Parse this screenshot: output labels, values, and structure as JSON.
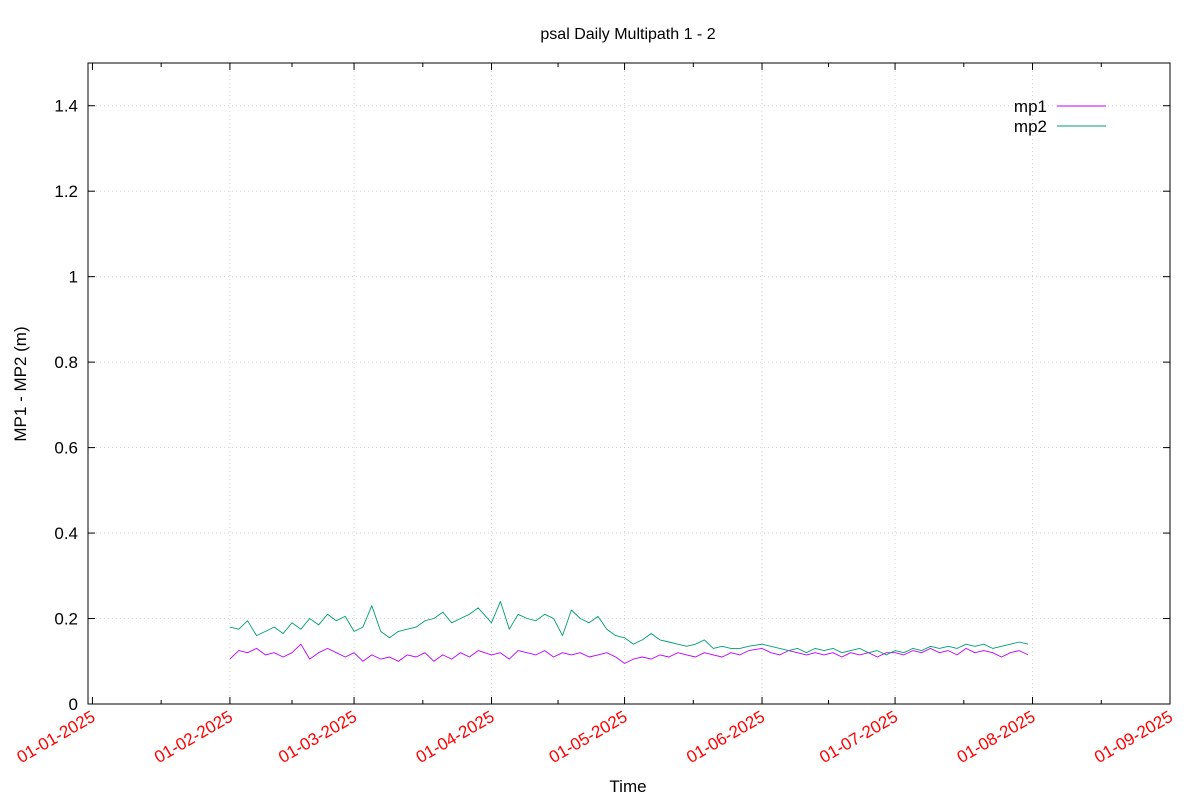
{
  "chart_data": {
    "type": "line",
    "title": "psal Daily Multipath 1 - 2",
    "xlabel": "Time",
    "ylabel": "MP1 - MP2 (m)",
    "xlim": [
      "2024-12-31",
      "2025-09-01"
    ],
    "ylim": [
      0,
      1.5
    ],
    "grid": true,
    "legend_position": "top-right",
    "x_tick_labels": [
      "01-01-2025",
      "01-02-2025",
      "01-03-2025",
      "01-04-2025",
      "01-05-2025",
      "01-06-2025",
      "01-07-2025",
      "01-08-2025",
      "01-09-2025"
    ],
    "x_tick_dates": [
      "2025-01-01",
      "2025-02-01",
      "2025-03-01",
      "2025-04-01",
      "2025-05-01",
      "2025-06-01",
      "2025-07-01",
      "2025-08-01",
      "2025-09-01"
    ],
    "y_ticks": [
      "0",
      "0.2",
      "0.4",
      "0.6",
      "0.8",
      "1",
      "1.2",
      "1.4"
    ],
    "x_tick_color": "#ff0000",
    "series": [
      {
        "name": "mp1",
        "color": "#c000ff",
        "points": [
          [
            "2025-02-01",
            0.105
          ],
          [
            "2025-02-03",
            0.125
          ],
          [
            "2025-02-05",
            0.12
          ],
          [
            "2025-02-07",
            0.13
          ],
          [
            "2025-02-09",
            0.115
          ],
          [
            "2025-02-11",
            0.12
          ],
          [
            "2025-02-13",
            0.11
          ],
          [
            "2025-02-15",
            0.12
          ],
          [
            "2025-02-17",
            0.14
          ],
          [
            "2025-02-19",
            0.105
          ],
          [
            "2025-02-21",
            0.12
          ],
          [
            "2025-02-23",
            0.13
          ],
          [
            "2025-02-25",
            0.12
          ],
          [
            "2025-02-27",
            0.11
          ],
          [
            "2025-03-01",
            0.12
          ],
          [
            "2025-03-03",
            0.1
          ],
          [
            "2025-03-05",
            0.115
          ],
          [
            "2025-03-07",
            0.105
          ],
          [
            "2025-03-09",
            0.11
          ],
          [
            "2025-03-11",
            0.1
          ],
          [
            "2025-03-13",
            0.115
          ],
          [
            "2025-03-15",
            0.11
          ],
          [
            "2025-03-17",
            0.12
          ],
          [
            "2025-03-19",
            0.1
          ],
          [
            "2025-03-21",
            0.115
          ],
          [
            "2025-03-23",
            0.105
          ],
          [
            "2025-03-25",
            0.12
          ],
          [
            "2025-03-27",
            0.11
          ],
          [
            "2025-03-29",
            0.125
          ],
          [
            "2025-04-01",
            0.115
          ],
          [
            "2025-04-03",
            0.12
          ],
          [
            "2025-04-05",
            0.105
          ],
          [
            "2025-04-07",
            0.125
          ],
          [
            "2025-04-09",
            0.12
          ],
          [
            "2025-04-11",
            0.115
          ],
          [
            "2025-04-13",
            0.125
          ],
          [
            "2025-04-15",
            0.11
          ],
          [
            "2025-04-17",
            0.12
          ],
          [
            "2025-04-19",
            0.115
          ],
          [
            "2025-04-21",
            0.12
          ],
          [
            "2025-04-23",
            0.11
          ],
          [
            "2025-04-25",
            0.115
          ],
          [
            "2025-04-27",
            0.12
          ],
          [
            "2025-04-29",
            0.11
          ],
          [
            "2025-05-01",
            0.095
          ],
          [
            "2025-05-03",
            0.105
          ],
          [
            "2025-05-05",
            0.11
          ],
          [
            "2025-05-07",
            0.105
          ],
          [
            "2025-05-09",
            0.115
          ],
          [
            "2025-05-11",
            0.11
          ],
          [
            "2025-05-13",
            0.12
          ],
          [
            "2025-05-15",
            0.115
          ],
          [
            "2025-05-17",
            0.11
          ],
          [
            "2025-05-19",
            0.12
          ],
          [
            "2025-05-21",
            0.115
          ],
          [
            "2025-05-23",
            0.11
          ],
          [
            "2025-05-25",
            0.12
          ],
          [
            "2025-05-27",
            0.115
          ],
          [
            "2025-05-29",
            0.125
          ],
          [
            "2025-06-01",
            0.13
          ],
          [
            "2025-06-03",
            0.12
          ],
          [
            "2025-06-05",
            0.115
          ],
          [
            "2025-06-07",
            0.125
          ],
          [
            "2025-06-09",
            0.12
          ],
          [
            "2025-06-11",
            0.115
          ],
          [
            "2025-06-13",
            0.12
          ],
          [
            "2025-06-15",
            0.115
          ],
          [
            "2025-06-17",
            0.12
          ],
          [
            "2025-06-19",
            0.11
          ],
          [
            "2025-06-21",
            0.12
          ],
          [
            "2025-06-23",
            0.115
          ],
          [
            "2025-06-25",
            0.12
          ],
          [
            "2025-06-27",
            0.11
          ],
          [
            "2025-06-29",
            0.12
          ],
          [
            "2025-07-01",
            0.12
          ],
          [
            "2025-07-03",
            0.115
          ],
          [
            "2025-07-05",
            0.125
          ],
          [
            "2025-07-07",
            0.12
          ],
          [
            "2025-07-09",
            0.13
          ],
          [
            "2025-07-11",
            0.12
          ],
          [
            "2025-07-13",
            0.125
          ],
          [
            "2025-07-15",
            0.115
          ],
          [
            "2025-07-17",
            0.13
          ],
          [
            "2025-07-19",
            0.12
          ],
          [
            "2025-07-21",
            0.125
          ],
          [
            "2025-07-23",
            0.12
          ],
          [
            "2025-07-25",
            0.11
          ],
          [
            "2025-07-27",
            0.12
          ],
          [
            "2025-07-29",
            0.125
          ],
          [
            "2025-07-31",
            0.115
          ]
        ]
      },
      {
        "name": "mp2",
        "color": "#009e73",
        "points": [
          [
            "2025-02-01",
            0.18
          ],
          [
            "2025-02-03",
            0.175
          ],
          [
            "2025-02-05",
            0.195
          ],
          [
            "2025-02-07",
            0.16
          ],
          [
            "2025-02-09",
            0.17
          ],
          [
            "2025-02-11",
            0.18
          ],
          [
            "2025-02-13",
            0.165
          ],
          [
            "2025-02-15",
            0.19
          ],
          [
            "2025-02-17",
            0.175
          ],
          [
            "2025-02-19",
            0.2
          ],
          [
            "2025-02-21",
            0.185
          ],
          [
            "2025-02-23",
            0.21
          ],
          [
            "2025-02-25",
            0.195
          ],
          [
            "2025-02-27",
            0.205
          ],
          [
            "2025-03-01",
            0.17
          ],
          [
            "2025-03-03",
            0.18
          ],
          [
            "2025-03-05",
            0.23
          ],
          [
            "2025-03-07",
            0.17
          ],
          [
            "2025-03-09",
            0.155
          ],
          [
            "2025-03-11",
            0.17
          ],
          [
            "2025-03-13",
            0.175
          ],
          [
            "2025-03-15",
            0.18
          ],
          [
            "2025-03-17",
            0.195
          ],
          [
            "2025-03-19",
            0.2
          ],
          [
            "2025-03-21",
            0.215
          ],
          [
            "2025-03-23",
            0.19
          ],
          [
            "2025-03-25",
            0.2
          ],
          [
            "2025-03-27",
            0.21
          ],
          [
            "2025-03-29",
            0.225
          ],
          [
            "2025-04-01",
            0.19
          ],
          [
            "2025-04-03",
            0.24
          ],
          [
            "2025-04-05",
            0.175
          ],
          [
            "2025-04-07",
            0.21
          ],
          [
            "2025-04-09",
            0.2
          ],
          [
            "2025-04-11",
            0.195
          ],
          [
            "2025-04-13",
            0.21
          ],
          [
            "2025-04-15",
            0.2
          ],
          [
            "2025-04-17",
            0.16
          ],
          [
            "2025-04-19",
            0.22
          ],
          [
            "2025-04-21",
            0.2
          ],
          [
            "2025-04-23",
            0.19
          ],
          [
            "2025-04-25",
            0.205
          ],
          [
            "2025-04-27",
            0.175
          ],
          [
            "2025-04-29",
            0.16
          ],
          [
            "2025-05-01",
            0.155
          ],
          [
            "2025-05-03",
            0.14
          ],
          [
            "2025-05-05",
            0.15
          ],
          [
            "2025-05-07",
            0.165
          ],
          [
            "2025-05-09",
            0.15
          ],
          [
            "2025-05-11",
            0.145
          ],
          [
            "2025-05-13",
            0.14
          ],
          [
            "2025-05-15",
            0.135
          ],
          [
            "2025-05-17",
            0.14
          ],
          [
            "2025-05-19",
            0.15
          ],
          [
            "2025-05-21",
            0.13
          ],
          [
            "2025-05-23",
            0.135
          ],
          [
            "2025-05-25",
            0.13
          ],
          [
            "2025-05-27",
            0.13
          ],
          [
            "2025-05-29",
            0.135
          ],
          [
            "2025-06-01",
            0.14
          ],
          [
            "2025-06-03",
            0.135
          ],
          [
            "2025-06-05",
            0.13
          ],
          [
            "2025-06-07",
            0.125
          ],
          [
            "2025-06-09",
            0.13
          ],
          [
            "2025-06-11",
            0.12
          ],
          [
            "2025-06-13",
            0.13
          ],
          [
            "2025-06-15",
            0.125
          ],
          [
            "2025-06-17",
            0.13
          ],
          [
            "2025-06-19",
            0.12
          ],
          [
            "2025-06-21",
            0.125
          ],
          [
            "2025-06-23",
            0.13
          ],
          [
            "2025-06-25",
            0.12
          ],
          [
            "2025-06-27",
            0.125
          ],
          [
            "2025-06-29",
            0.115
          ],
          [
            "2025-07-01",
            0.125
          ],
          [
            "2025-07-03",
            0.12
          ],
          [
            "2025-07-05",
            0.13
          ],
          [
            "2025-07-07",
            0.125
          ],
          [
            "2025-07-09",
            0.135
          ],
          [
            "2025-07-11",
            0.13
          ],
          [
            "2025-07-13",
            0.135
          ],
          [
            "2025-07-15",
            0.13
          ],
          [
            "2025-07-17",
            0.14
          ],
          [
            "2025-07-19",
            0.135
          ],
          [
            "2025-07-21",
            0.14
          ],
          [
            "2025-07-23",
            0.13
          ],
          [
            "2025-07-25",
            0.135
          ],
          [
            "2025-07-27",
            0.14
          ],
          [
            "2025-07-29",
            0.145
          ],
          [
            "2025-07-31",
            0.14
          ]
        ]
      }
    ]
  }
}
